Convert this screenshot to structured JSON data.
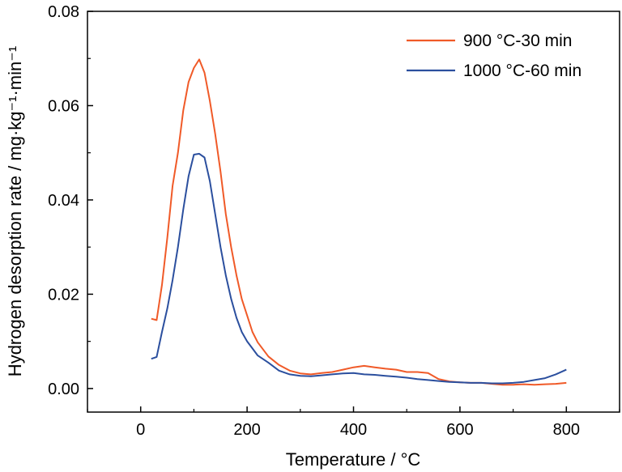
{
  "chart_data": {
    "type": "line",
    "title": "",
    "xlabel": "Temperature / °C",
    "ylabel": "Hydrogen desorption rate / mg·kg⁻¹·min⁻¹",
    "xlim": [
      -100,
      900
    ],
    "ylim": [
      -0.005,
      0.08
    ],
    "xticks": [
      0,
      200,
      400,
      600,
      800
    ],
    "xtick_labels": [
      "0",
      "200",
      "400",
      "600",
      "800"
    ],
    "yticks": [
      0.0,
      0.02,
      0.04,
      0.06,
      0.08
    ],
    "ytick_labels": [
      "0.00",
      "0.02",
      "0.04",
      "0.06",
      "0.08"
    ],
    "grid": false,
    "legend_position": "top-right",
    "series": [
      {
        "name": "900 °C-30 min",
        "color": "#f05a28",
        "x": [
          20,
          30,
          40,
          50,
          60,
          70,
          80,
          90,
          100,
          110,
          120,
          130,
          140,
          150,
          160,
          170,
          180,
          190,
          200,
          210,
          220,
          240,
          260,
          280,
          300,
          320,
          340,
          360,
          380,
          400,
          420,
          440,
          460,
          480,
          500,
          520,
          540,
          560,
          580,
          600,
          620,
          640,
          660,
          680,
          700,
          720,
          740,
          760,
          780,
          800
        ],
        "y": [
          0.0148,
          0.0145,
          0.022,
          0.032,
          0.043,
          0.05,
          0.059,
          0.065,
          0.068,
          0.0698,
          0.067,
          0.061,
          0.054,
          0.046,
          0.037,
          0.03,
          0.024,
          0.019,
          0.0155,
          0.012,
          0.0098,
          0.0068,
          0.005,
          0.0038,
          0.0032,
          0.003,
          0.0033,
          0.0035,
          0.004,
          0.0045,
          0.0048,
          0.0045,
          0.0042,
          0.004,
          0.0035,
          0.0035,
          0.0033,
          0.002,
          0.0015,
          0.0013,
          0.0012,
          0.0012,
          0.001,
          0.0008,
          0.0008,
          0.0009,
          0.0008,
          0.0009,
          0.001,
          0.0012
        ]
      },
      {
        "name": "1000 °C-60 min",
        "color": "#2b4f9e",
        "x": [
          20,
          30,
          40,
          50,
          60,
          70,
          80,
          90,
          100,
          110,
          120,
          130,
          140,
          150,
          160,
          170,
          180,
          190,
          200,
          210,
          220,
          240,
          260,
          280,
          300,
          320,
          340,
          360,
          380,
          400,
          420,
          440,
          460,
          480,
          500,
          520,
          540,
          560,
          580,
          600,
          620,
          640,
          660,
          680,
          700,
          720,
          740,
          760,
          780,
          800
        ],
        "y": [
          0.0063,
          0.0067,
          0.012,
          0.017,
          0.023,
          0.03,
          0.038,
          0.045,
          0.0496,
          0.0498,
          0.049,
          0.044,
          0.037,
          0.03,
          0.024,
          0.019,
          0.015,
          0.012,
          0.01,
          0.0085,
          0.007,
          0.0055,
          0.0038,
          0.003,
          0.0027,
          0.0026,
          0.0028,
          0.003,
          0.0032,
          0.0033,
          0.003,
          0.0029,
          0.0027,
          0.0025,
          0.0023,
          0.002,
          0.0018,
          0.0016,
          0.0014,
          0.0013,
          0.0012,
          0.0012,
          0.0011,
          0.0011,
          0.0012,
          0.0014,
          0.0018,
          0.0022,
          0.003,
          0.004
        ]
      }
    ]
  }
}
